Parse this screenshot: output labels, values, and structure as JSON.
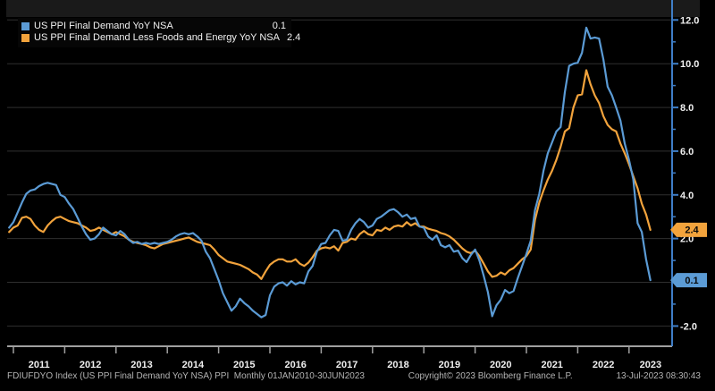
{
  "legend": {
    "rows": [
      {
        "label": "US PPI Final Demand YoY NSA",
        "value": "0.1",
        "color": "#5b9bd5"
      },
      {
        "label": "US PPI Final Demand Less Foods and Energy YoY NSA",
        "value": "2.4",
        "color": "#f2a33c"
      }
    ]
  },
  "status_bar": {
    "left": "FDIUFDYO Index (US PPI Final Demand YoY NSA) PPI  Monthly 01JAN2010-30JUN2023",
    "copyright": "Copyright© 2023 Bloomberg Finance L.P.",
    "datetime": "13-Jul-2023 08:30:43"
  },
  "chart_data": {
    "type": "line",
    "frequency": "monthly",
    "start": "2010-12",
    "end": "2023-06",
    "grid": true,
    "legend_position": "top-left",
    "y_axis": {
      "side": "right",
      "ylim": [
        -2.9,
        12.9
      ],
      "major_tick_values": [
        12,
        10,
        8,
        6,
        4,
        2,
        0,
        -2
      ],
      "major_tick_labels": [
        "12.0",
        "10.0",
        "8.0",
        "6.0",
        "4.0",
        "2.0",
        "0.0",
        "-2.0"
      ],
      "minor_tick_step": 1
    },
    "x_axis": {
      "years": [
        "2011",
        "2012",
        "2013",
        "2014",
        "2015",
        "2016",
        "2017",
        "2018",
        "2019",
        "2020",
        "2021",
        "2022",
        "2023"
      ]
    },
    "series": [
      {
        "name": "US PPI Final Demand Less Foods and Energy YoY NSA",
        "color": "#f2a33c",
        "badge": "2.4",
        "values": [
          2.3,
          2.5,
          2.6,
          2.95,
          3.0,
          2.9,
          2.6,
          2.4,
          2.3,
          2.6,
          2.8,
          2.95,
          3.0,
          2.9,
          2.8,
          2.75,
          2.7,
          2.6,
          2.5,
          2.35,
          2.4,
          2.5,
          2.4,
          2.3,
          2.2,
          2.3,
          2.2,
          2.1,
          1.95,
          1.85,
          1.8,
          1.75,
          1.7,
          1.6,
          1.55,
          1.65,
          1.75,
          1.8,
          1.85,
          1.9,
          1.95,
          2.0,
          2.05,
          1.95,
          1.85,
          1.8,
          1.75,
          1.7,
          1.5,
          1.25,
          1.1,
          0.95,
          0.9,
          0.85,
          0.8,
          0.7,
          0.6,
          0.45,
          0.35,
          0.15,
          0.5,
          0.8,
          0.95,
          1.05,
          1.05,
          0.95,
          0.95,
          1.05,
          0.85,
          0.75,
          0.9,
          1.15,
          1.45,
          1.55,
          1.6,
          1.55,
          1.65,
          1.45,
          1.8,
          1.85,
          2.0,
          1.95,
          2.2,
          2.35,
          2.2,
          2.15,
          2.4,
          2.35,
          2.5,
          2.4,
          2.55,
          2.6,
          2.55,
          2.75,
          2.6,
          2.7,
          2.55,
          2.55,
          2.45,
          2.4,
          2.35,
          2.25,
          2.2,
          2.1,
          1.95,
          1.75,
          1.55,
          1.4,
          1.33,
          1.45,
          1.2,
          0.85,
          0.5,
          0.25,
          0.3,
          0.45,
          0.35,
          0.55,
          0.65,
          0.85,
          1.05,
          1.2,
          1.5,
          2.85,
          3.65,
          4.2,
          4.7,
          5.1,
          5.6,
          6.2,
          6.9,
          7.05,
          8.0,
          8.55,
          8.6,
          9.7,
          9.05,
          8.55,
          8.2,
          7.6,
          7.2,
          7.0,
          6.9,
          6.35,
          5.9,
          5.4,
          4.85,
          4.3,
          3.6,
          3.1,
          2.4
        ]
      },
      {
        "name": "US PPI Final Demand YoY NSA",
        "color": "#5b9bd5",
        "badge": "0.1",
        "values": [
          2.5,
          2.75,
          3.2,
          3.65,
          4.05,
          4.2,
          4.25,
          4.4,
          4.5,
          4.55,
          4.5,
          4.45,
          4.0,
          3.9,
          3.6,
          3.35,
          2.95,
          2.55,
          2.2,
          1.95,
          2.0,
          2.2,
          2.5,
          2.35,
          2.2,
          2.15,
          2.35,
          2.2,
          1.95,
          1.8,
          1.85,
          1.75,
          1.8,
          1.75,
          1.8,
          1.75,
          1.8,
          1.85,
          1.95,
          2.1,
          2.2,
          2.25,
          2.2,
          2.25,
          2.1,
          1.9,
          1.4,
          1.1,
          0.6,
          0.1,
          -0.5,
          -0.9,
          -1.3,
          -1.1,
          -0.75,
          -0.95,
          -1.1,
          -1.3,
          -1.45,
          -1.6,
          -1.5,
          -0.6,
          -0.2,
          -0.05,
          0.0,
          -0.15,
          0.05,
          -0.1,
          0.0,
          -0.05,
          0.5,
          0.75,
          1.4,
          1.75,
          1.8,
          2.15,
          2.4,
          2.35,
          1.9,
          1.95,
          2.4,
          2.7,
          2.9,
          2.75,
          2.5,
          2.6,
          2.9,
          3.0,
          3.15,
          3.3,
          3.35,
          3.2,
          3.0,
          3.1,
          2.9,
          2.95,
          2.55,
          2.5,
          2.1,
          1.95,
          2.15,
          1.7,
          1.6,
          1.7,
          1.4,
          1.45,
          1.1,
          0.92,
          1.25,
          1.5,
          1.0,
          0.3,
          -0.45,
          -1.55,
          -1.05,
          -0.8,
          -0.35,
          -0.5,
          -0.4,
          0.2,
          0.75,
          1.3,
          1.9,
          3.3,
          4.05,
          5.1,
          5.9,
          6.4,
          6.9,
          7.1,
          8.7,
          9.9,
          10.0,
          10.05,
          10.5,
          11.65,
          11.15,
          11.2,
          11.15,
          10.2,
          8.95,
          8.55,
          8.0,
          7.4,
          6.35,
          5.6,
          4.7,
          2.7,
          2.3,
          1.05,
          0.1
        ]
      }
    ],
    "colors": {
      "background": "#000000",
      "grid": "#2f2f2f",
      "axis": "#3f7ec7",
      "label": "#f0f0f0",
      "baseline": "#a0a0a0",
      "badge_text": "#0a0a0a"
    }
  }
}
